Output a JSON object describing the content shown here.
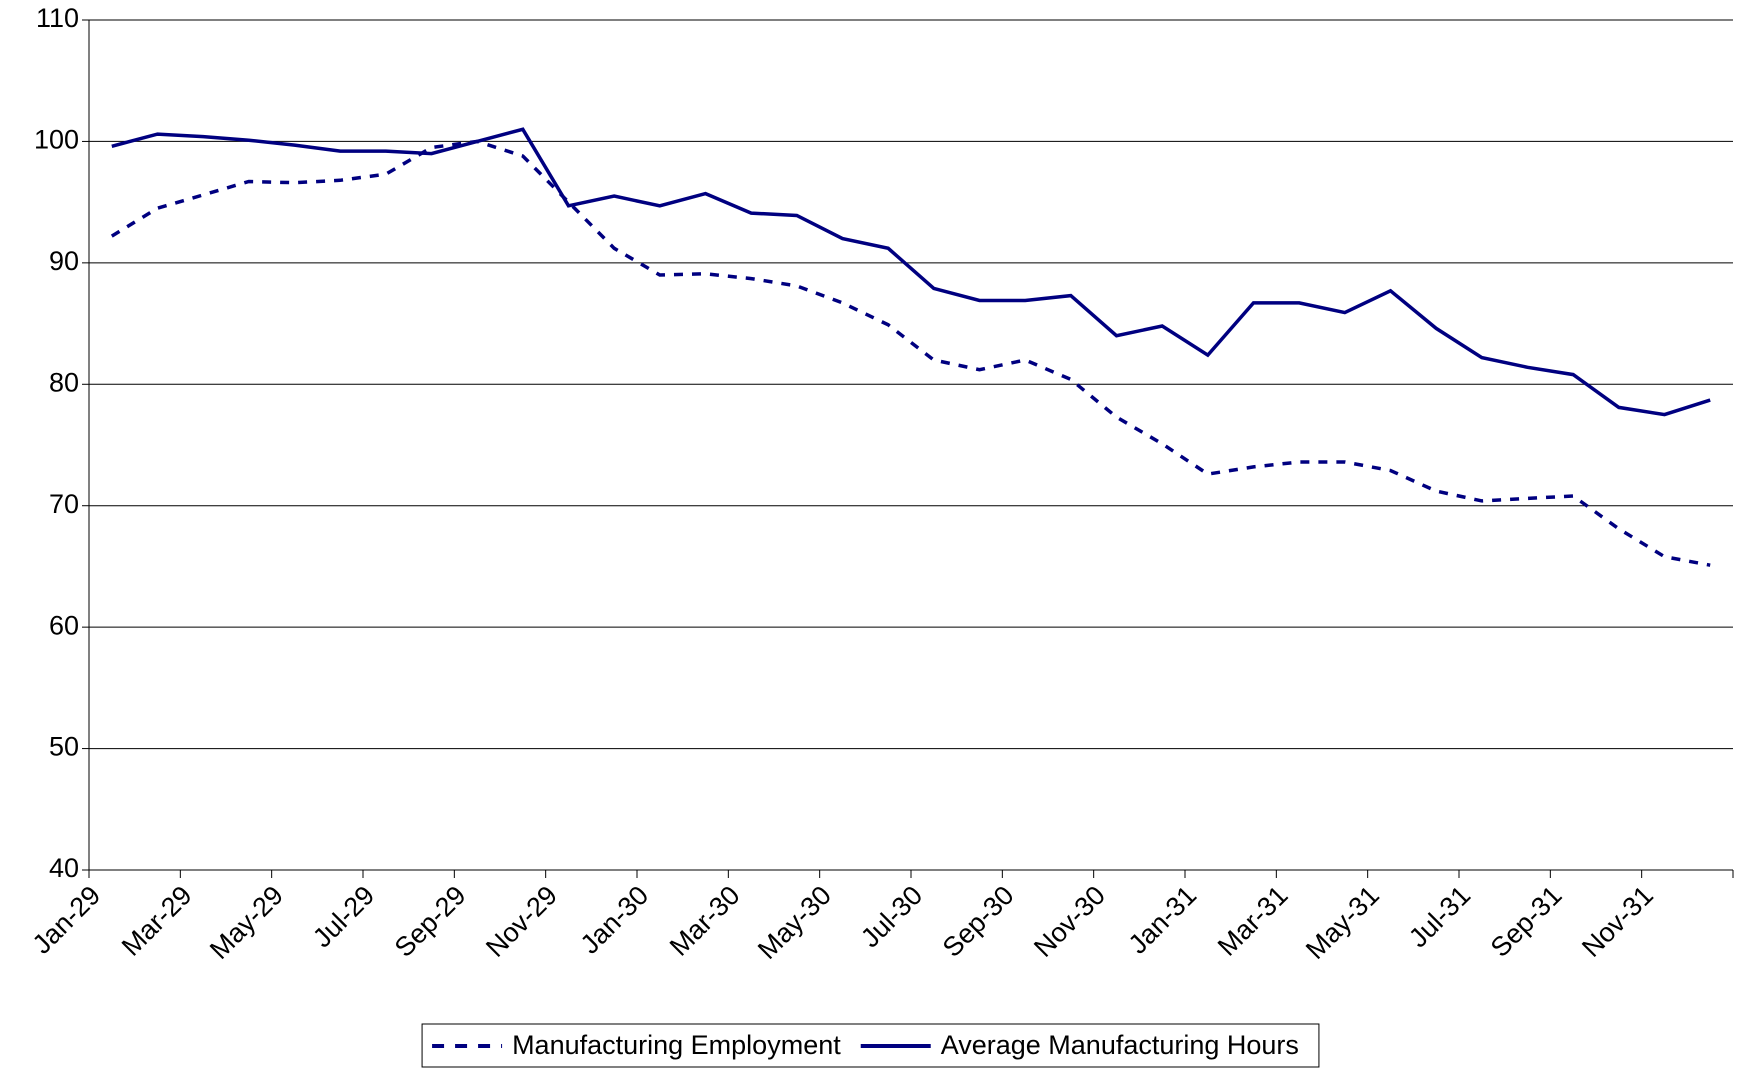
{
  "chart_data": {
    "type": "line",
    "categories": [
      "Jan-29",
      null,
      "Mar-29",
      null,
      "May-29",
      null,
      "Jul-29",
      null,
      "Sep-29",
      null,
      "Nov-29",
      null,
      "Jan-30",
      null,
      "Mar-30",
      null,
      "May-30",
      null,
      "Jul-30",
      null,
      "Sep-30",
      null,
      "Nov-30",
      null,
      "Jan-31",
      null,
      "Mar-31",
      null,
      "May-31",
      null,
      "Jul-31",
      null,
      "Sep-31",
      null,
      "Nov-31",
      null
    ],
    "series": [
      {
        "name": "Manufacturing Employment",
        "color": "#000080",
        "style": "dashed",
        "values": [
          92.2,
          94.5,
          95.6,
          96.7,
          96.6,
          96.8,
          97.3,
          99.5,
          100.0,
          98.8,
          95.0,
          91.2,
          89.0,
          89.1,
          88.7,
          88.1,
          86.7,
          84.9,
          82.0,
          81.2,
          82.0,
          80.4,
          77.3,
          75.1,
          72.6,
          73.2,
          73.6,
          73.6,
          72.9,
          71.2,
          70.4,
          70.6,
          70.8,
          68.1,
          65.8,
          65.1
        ]
      },
      {
        "name": "Average Manufacturing Hours",
        "color": "#000080",
        "style": "solid",
        "values": [
          99.6,
          100.6,
          100.4,
          100.1,
          99.7,
          99.2,
          99.2,
          99.0,
          100.0,
          101.0,
          94.7,
          95.5,
          94.7,
          95.7,
          94.1,
          93.9,
          92.0,
          91.2,
          87.9,
          86.9,
          86.9,
          87.3,
          84.0,
          84.8,
          82.4,
          86.7,
          86.7,
          85.9,
          87.7,
          84.6,
          82.2,
          81.4,
          80.8,
          78.1,
          77.5,
          78.7
        ]
      }
    ],
    "ylim": [
      40,
      110
    ],
    "yticks": [
      40,
      50,
      60,
      70,
      80,
      90,
      100,
      110
    ],
    "grid": true,
    "legend": "bottom"
  }
}
